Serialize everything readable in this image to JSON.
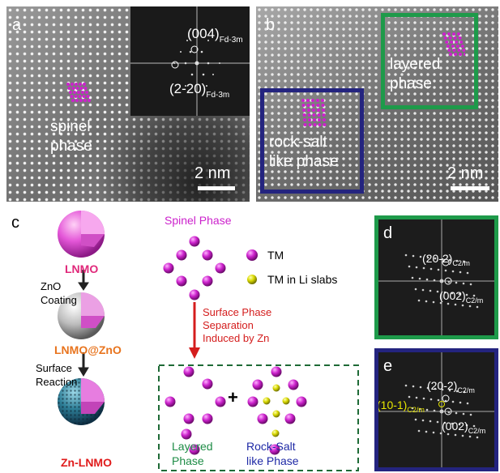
{
  "colors": {
    "magenta": "#cc22cc",
    "yellow": "#d8d800",
    "green_frame": "#1e9a4a",
    "blue_frame": "#24247f",
    "red_arrow": "#d41d1d",
    "lnmo_label": "#e0287a",
    "lnmozno_label": "#e8741e",
    "znlnmo_label": "#e01b1b",
    "layered_label": "#1e8c46",
    "rocksalt_label": "#1f2aa6"
  },
  "panel_a": {
    "label": "a",
    "phase_label_1": "spinel",
    "phase_label_2": "phase",
    "fft_spot_1": "(004)",
    "fft_spot_1_sub": "Fd-3m",
    "fft_spot_2": "(2-20)",
    "fft_spot_2_sub": "Fd-3m",
    "scale": "2 nm"
  },
  "panel_b": {
    "label": "b",
    "layered_1": "layered",
    "layered_2": "phase",
    "rocksalt_1": "rock-salt",
    "rocksalt_2": "like phase",
    "scale": "2 nm"
  },
  "panel_c": {
    "label": "c",
    "lnmo": "LNMO",
    "step1_1": "ZnO",
    "step1_2": "Coating",
    "lnmozno": "LNMO@ZnO",
    "step2_1": "Surface",
    "step2_2": "Reaction",
    "znlnmo": "Zn-LNMO",
    "spinel_phase": "Spinel Phase",
    "legend_tm": "TM",
    "legend_tm_li": "TM in Li slabs",
    "sep_1": "Surface Phase",
    "sep_2": "Separation",
    "sep_3": "Induced by Zn",
    "plus": "+",
    "layered_1": "Layered",
    "layered_2": "Phase",
    "rocksalt_1": "Rock-Salt",
    "rocksalt_2": "like Phase"
  },
  "panel_d": {
    "label": "d",
    "spot_1": "(20-2)",
    "spot_1_sub": "C2/m",
    "spot_2": "(002)",
    "spot_2_sub": "C2/m"
  },
  "panel_e": {
    "label": "e",
    "spot_1": "(20-2)",
    "spot_1_sub": "C2/m",
    "spot_yellow": "(10-1)",
    "spot_yellow_sub": "C2/m",
    "spot_2": "(002)",
    "spot_2_sub": "C2/m"
  }
}
